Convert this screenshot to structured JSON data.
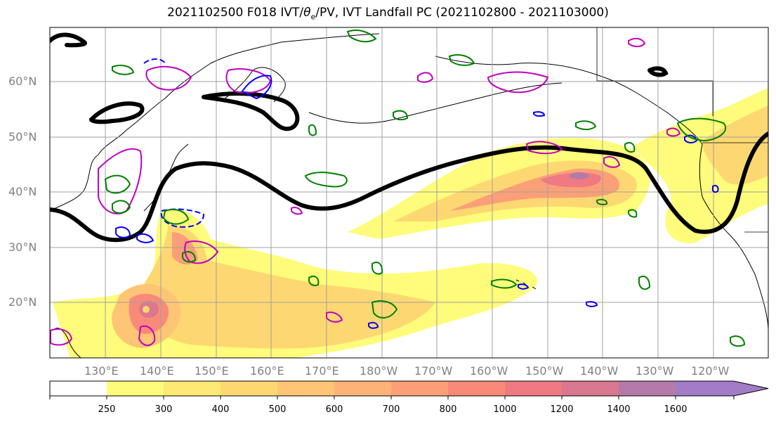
{
  "title": {
    "prefix": "2021102500 F018 IVT/",
    "theta_symbol": "θ",
    "theta_sub": "e",
    "suffix": "/PV, IVT Landfall PC (2021102800 - 2021103000)"
  },
  "axes": {
    "lat_labels": [
      "60°N",
      "50°N",
      "40°N",
      "30°N",
      "20°N"
    ],
    "lon_labels": [
      "130°E",
      "140°E",
      "150°E",
      "160°E",
      "170°E",
      "180°W",
      "170°W",
      "160°W",
      "150°W",
      "140°W",
      "130°W",
      "120°W"
    ]
  },
  "colorbar": {
    "ticks": [
      "250",
      "300",
      "400",
      "500",
      "600",
      "700",
      "800",
      "1000",
      "1200",
      "1400",
      "1600"
    ],
    "colors": [
      "#ffffff",
      "#fefc7a",
      "#fde974",
      "#fdd872",
      "#fdc575",
      "#fdb378",
      "#fb9f78",
      "#f98a7a",
      "#ef7a82",
      "#d9788e",
      "#b57aa8",
      "#a27cc6"
    ]
  },
  "contour_colors": {
    "pv": "#000000",
    "theta_e_warm": "#c000c0",
    "theta_e_cold": "#0000ff",
    "ivt_landfall": "#008000"
  }
}
